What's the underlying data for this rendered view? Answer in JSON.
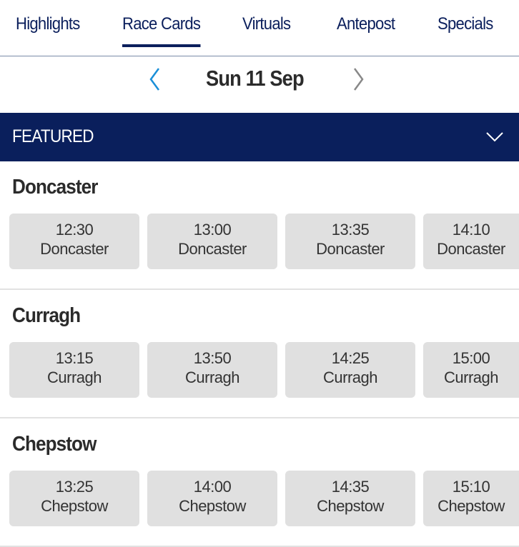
{
  "tabs": [
    {
      "label": "Highlights"
    },
    {
      "label": "Race Cards",
      "active": true
    },
    {
      "label": "Virtuals"
    },
    {
      "label": "Antepost"
    },
    {
      "label": "Specials"
    }
  ],
  "date": {
    "label": "Sun 11 Sep",
    "prev_icon": "chevron-left-icon",
    "next_icon": "chevron-right-icon"
  },
  "featured": {
    "label": "FEATURED",
    "icon": "chevron-down-icon"
  },
  "meetings": [
    {
      "name": "Doncaster",
      "races": [
        {
          "time": "12:30",
          "venue": "Doncaster"
        },
        {
          "time": "13:00",
          "venue": "Doncaster"
        },
        {
          "time": "13:35",
          "venue": "Doncaster"
        },
        {
          "time": "14:10",
          "venue": "Doncaster"
        }
      ]
    },
    {
      "name": "Curragh",
      "races": [
        {
          "time": "13:15",
          "venue": "Curragh"
        },
        {
          "time": "13:50",
          "venue": "Curragh"
        },
        {
          "time": "14:25",
          "venue": "Curragh"
        },
        {
          "time": "15:00",
          "venue": "Curragh"
        }
      ]
    },
    {
      "name": "Chepstow",
      "races": [
        {
          "time": "13:25",
          "venue": "Chepstow"
        },
        {
          "time": "14:00",
          "venue": "Chepstow"
        },
        {
          "time": "14:35",
          "venue": "Chepstow"
        },
        {
          "time": "15:10",
          "venue": "Chepstow"
        }
      ]
    }
  ],
  "colors": {
    "brand": "#0a1f5c",
    "prev_arrow": "#1a8fd8",
    "next_arrow": "#888888",
    "card_bg": "#e0e0e0"
  }
}
